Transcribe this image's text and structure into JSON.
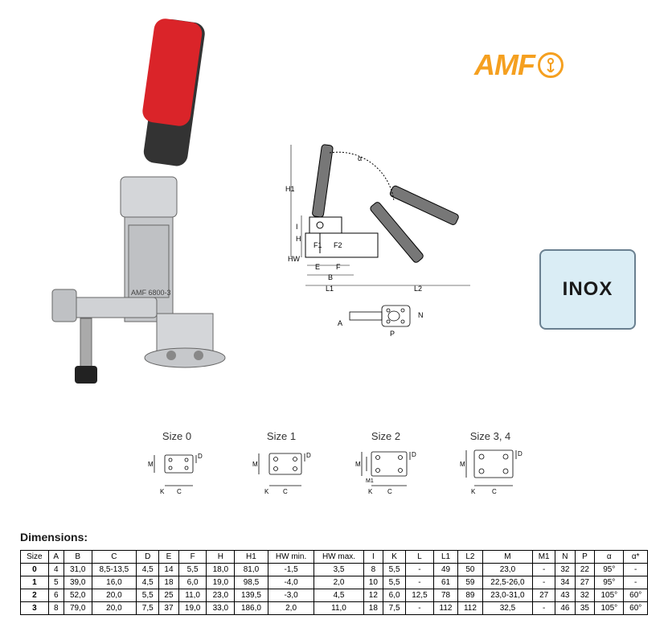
{
  "logo": {
    "text": "AMF"
  },
  "inox": {
    "label": "INOX"
  },
  "sizes": [
    {
      "label": "Size 0"
    },
    {
      "label": "Size 1"
    },
    {
      "label": "Size 2"
    },
    {
      "label": "Size 3, 4"
    }
  ],
  "dimensions": {
    "title": "Dimensions:",
    "columns": [
      "Size",
      "A",
      "B",
      "C",
      "D",
      "E",
      "F",
      "H",
      "H1",
      "HW min.",
      "HW max.",
      "I",
      "K",
      "L",
      "L1",
      "L2",
      "M",
      "M1",
      "N",
      "P",
      "α",
      "α*"
    ],
    "rows": [
      [
        "0",
        "4",
        "31,0",
        "8,5-13,5",
        "4,5",
        "14",
        "5,5",
        "18,0",
        "81,0",
        "-1,5",
        "3,5",
        "8",
        "5,5",
        "-",
        "49",
        "50",
        "23,0",
        "-",
        "32",
        "22",
        "95°",
        "-"
      ],
      [
        "1",
        "5",
        "39,0",
        "16,0",
        "4,5",
        "18",
        "6,0",
        "19,0",
        "98,5",
        "-4,0",
        "2,0",
        "10",
        "5,5",
        "-",
        "61",
        "59",
        "22,5-26,0",
        "-",
        "34",
        "27",
        "95°",
        "-"
      ],
      [
        "2",
        "6",
        "52,0",
        "20,0",
        "5,5",
        "25",
        "11,0",
        "23,0",
        "139,5",
        "-3,0",
        "4,5",
        "12",
        "6,0",
        "12,5",
        "78",
        "89",
        "23,0-31,0",
        "27",
        "43",
        "32",
        "105°",
        "60°"
      ],
      [
        "3",
        "8",
        "79,0",
        "20,0",
        "7,5",
        "37",
        "19,0",
        "33,0",
        "186,0",
        "2,0",
        "11,0",
        "18",
        "7,5",
        "-",
        "112",
        "112",
        "32,5",
        "-",
        "46",
        "35",
        "105°",
        "60°"
      ]
    ]
  },
  "diagram_labels": {
    "H1": "H1",
    "H": "H",
    "I": "I",
    "HW": "HW",
    "F1": "F1",
    "F2": "F2",
    "E": "E",
    "F": "F",
    "B": "B",
    "L1": "L1",
    "L2": "L2",
    "A": "A",
    "P": "P",
    "N": "N",
    "alpha": "α",
    "M": "M",
    "M1": "M1",
    "K": "K",
    "C": "C",
    "D": "D"
  }
}
